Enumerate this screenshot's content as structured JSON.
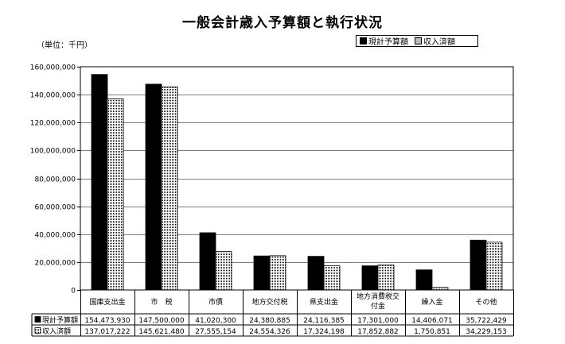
{
  "chart_data": {
    "type": "bar",
    "title": "一般会計歳入予算額と執行状況",
    "unit": "（単位：千円）",
    "categories": [
      [
        "国庫支出金"
      ],
      [
        "市　税"
      ],
      [
        "市債"
      ],
      [
        "地方交付税"
      ],
      [
        "県支出金"
      ],
      [
        "地方消費税交",
        "付金"
      ],
      [
        "繰入金"
      ],
      [
        "その他"
      ]
    ],
    "series": [
      {
        "name": "現計予算額",
        "color": "#000000",
        "values": [
          154473930,
          147500000,
          41020300,
          24380885,
          24116385,
          17301000,
          14406071,
          35722429
        ],
        "display": [
          "154,473,930",
          "147,500,000",
          "41,020,300",
          "24,380,885",
          "24,116,385",
          "17,301,000",
          "14,406,071",
          "35,722,429"
        ]
      },
      {
        "name": "収入済額",
        "color": "dotted",
        "values": [
          137017222,
          145621480,
          27555154,
          24554326,
          17324198,
          17852882,
          1750851,
          34229153
        ],
        "display": [
          "137,017,222",
          "145,621,480",
          "27,555,154",
          "24,554,326",
          "17,324,198",
          "17,852,882",
          "1,750,851",
          "34,229,153"
        ]
      }
    ],
    "ylim": [
      0,
      160000000
    ],
    "yticks": [
      0,
      20000000,
      40000000,
      60000000,
      80000000,
      100000000,
      120000000,
      140000000,
      160000000
    ],
    "ytick_labels": [
      "0",
      "20,000,000",
      "40,000,000",
      "60,000,000",
      "80,000,000",
      "100,000,000",
      "120,000,000",
      "140,000,000",
      "160,000,000"
    ],
    "grid": true,
    "legend": "top-right",
    "table": true
  }
}
